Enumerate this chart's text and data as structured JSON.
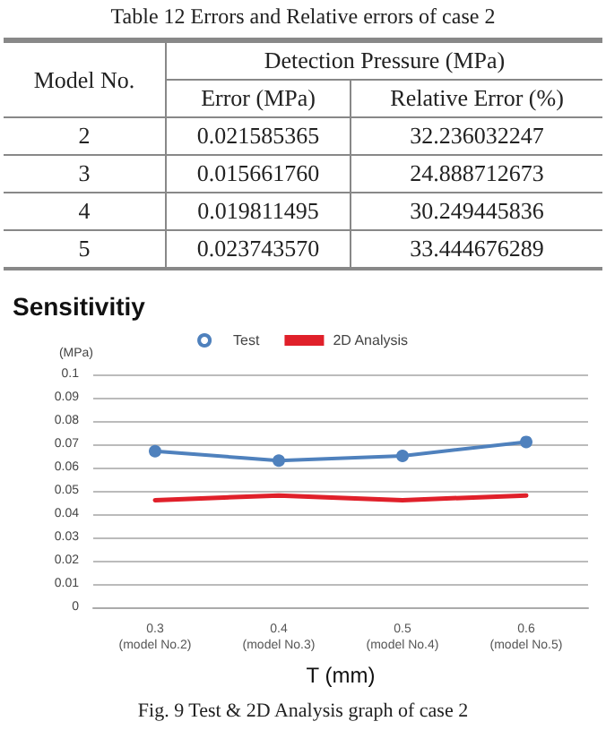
{
  "chart_data": {
    "type": "line",
    "title": "Sensitivitiy",
    "ylabel": "(MPa)",
    "xlabel": "T (mm)",
    "categories": [
      "0.3\n(model No.2)",
      "0.4\n(model No.3)",
      "0.5\n(model No.4)",
      "0.6\n(model No.5)"
    ],
    "series": [
      {
        "name": "Test",
        "color": "#4f81bd",
        "marker": "circle",
        "values": [
          0.067,
          0.063,
          0.065,
          0.071
        ]
      },
      {
        "name": "2D Analysis",
        "color": "#e0202a",
        "marker": "none",
        "values": [
          0.046,
          0.048,
          0.046,
          0.048
        ]
      }
    ],
    "ylim": [
      0,
      0.1
    ],
    "yticks": [
      0,
      0.01,
      0.02,
      0.03,
      0.04,
      0.05,
      0.06,
      0.07,
      0.08,
      0.09,
      0.1
    ],
    "grid": "y",
    "legend": "top",
    "annotations": [
      "Table 12 Errors and Relative errors of case 2",
      "Model No.",
      "Detection Pressure (MPa)",
      "Error (MPa)",
      "Relative Error (%)",
      "2",
      "0.021585365",
      "32.236032247",
      "3",
      "0.015661760",
      "24.888712673",
      "4",
      "0.019811495",
      "30.249445836",
      "5",
      "0.023743570",
      "33.444676289",
      "Fig. 9 Test & 2D Analysis graph of case 2"
    ]
  }
}
